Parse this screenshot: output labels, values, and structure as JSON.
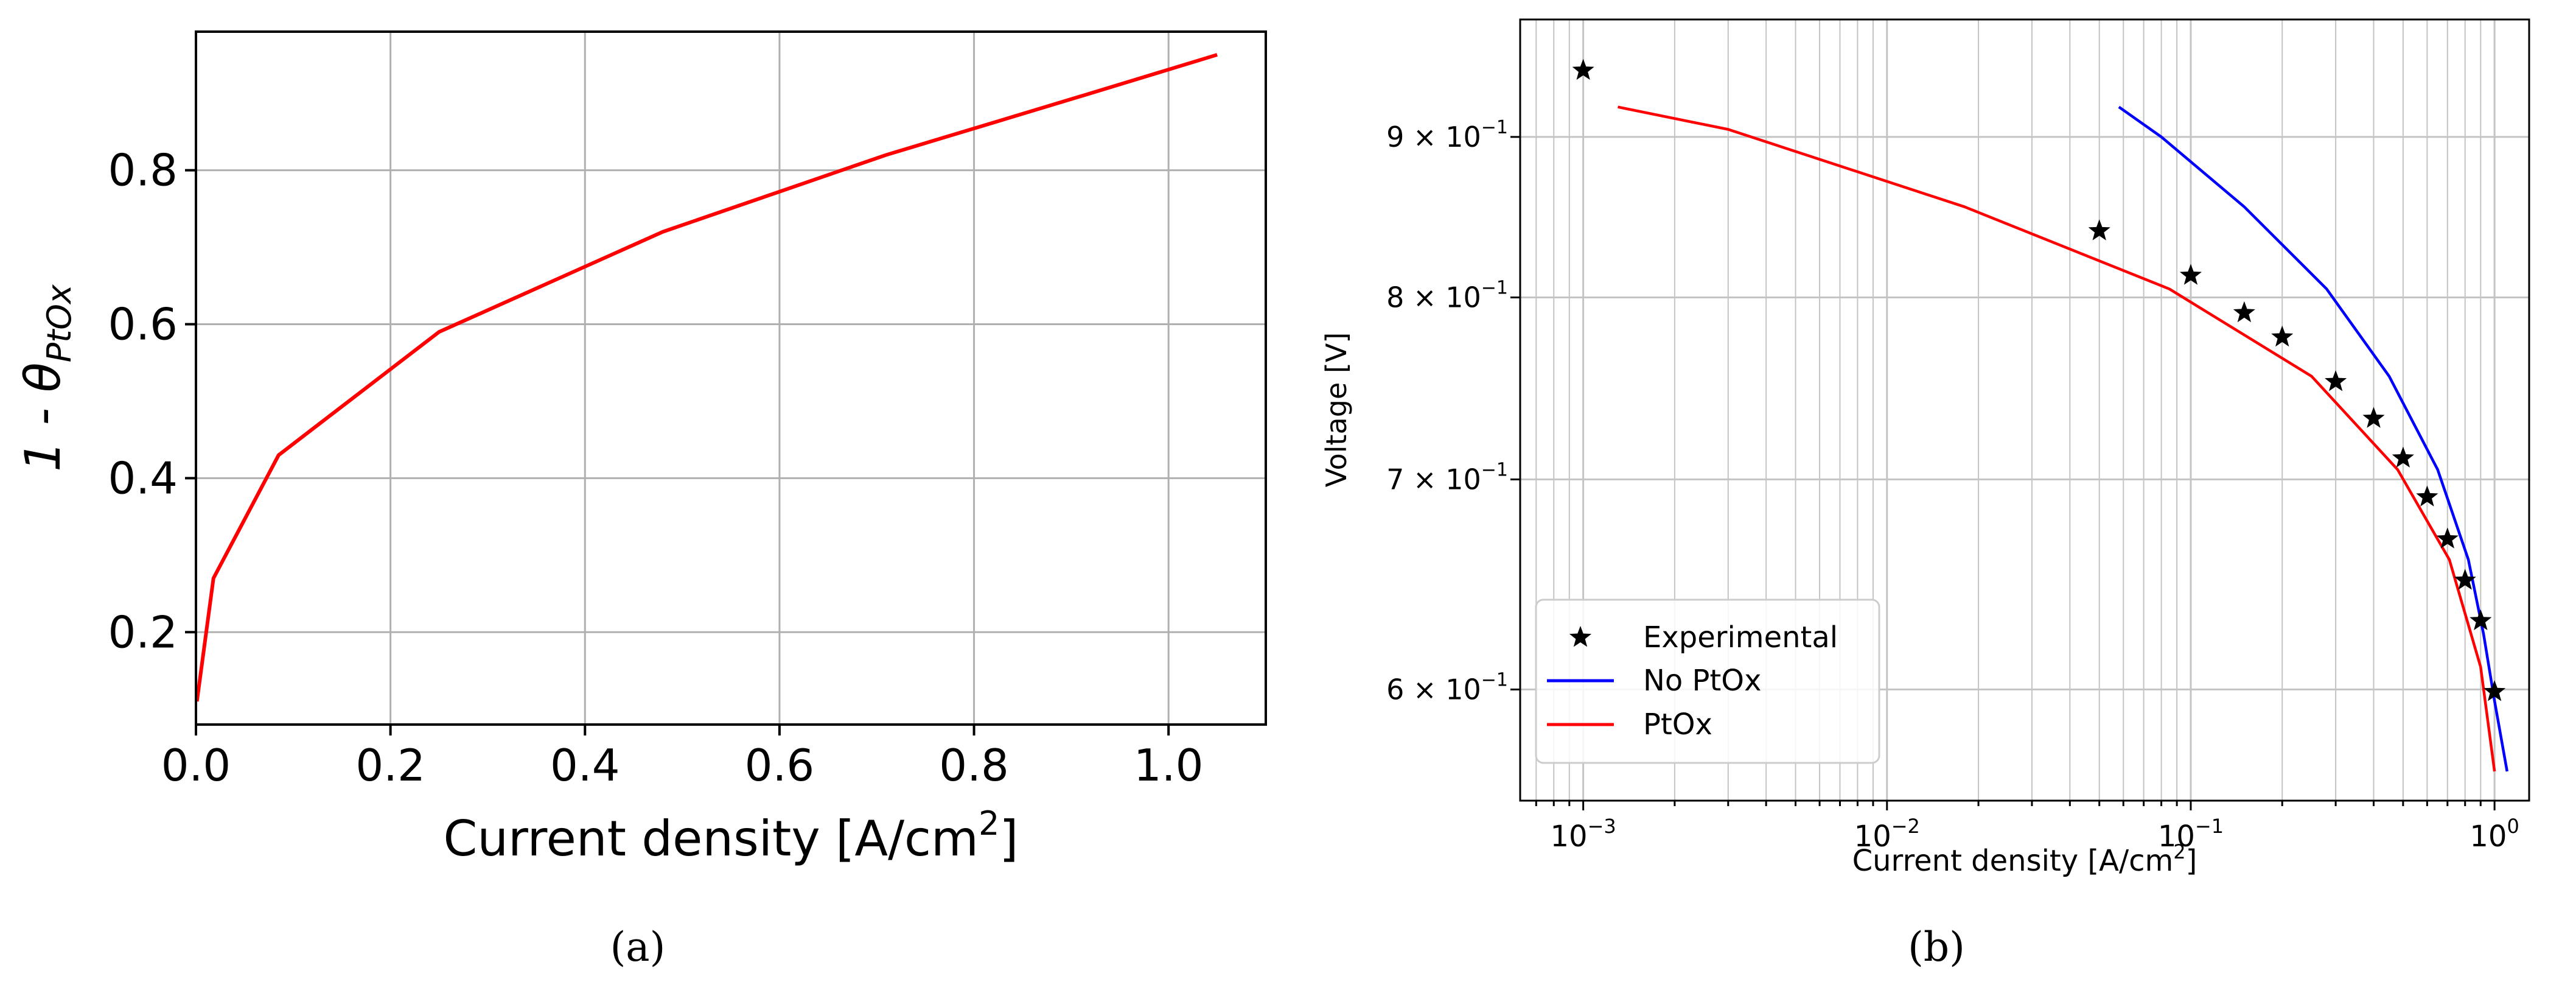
{
  "chart_data": [
    {
      "type": "line",
      "panel_label": "(a)",
      "title": "",
      "xlabel": "Current density  [A/cm",
      "xlabel_sup": "2",
      "xlabel_end": "]",
      "ylabel": "1 - θ",
      "ylabel_sub": "PtOx",
      "xlim": [
        0.0,
        1.1
      ],
      "ylim": [
        0.08,
        0.98
      ],
      "xticks": [
        0.0,
        0.2,
        0.4,
        0.6,
        0.8,
        1.0
      ],
      "xtick_labels": [
        "0.0",
        "0.2",
        "0.4",
        "0.6",
        "0.8",
        "1.0"
      ],
      "yticks": [
        0.2,
        0.4,
        0.6,
        0.8
      ],
      "ytick_labels": [
        "0.2",
        "0.4",
        "0.6",
        "0.8"
      ],
      "grid": true,
      "series": [
        {
          "name": "1 - θPtOx",
          "color": "#ff0000",
          "x": [
            0.001,
            0.018,
            0.085,
            0.25,
            0.48,
            0.71,
            0.92,
            1.05
          ],
          "y": [
            0.11,
            0.27,
            0.43,
            0.59,
            0.72,
            0.82,
            0.9,
            0.95
          ]
        }
      ]
    },
    {
      "type": "line",
      "panel_label": "(b)",
      "title": "",
      "xlabel": "Current density  [A/cm",
      "xlabel_sup": "2",
      "xlabel_end": "]",
      "ylabel": "Voltage [V]",
      "xscale": "log",
      "yscale": "log",
      "xlim": [
        0.00062,
        1.3
      ],
      "ylim": [
        0.553,
        0.981
      ],
      "xticks": [
        0.001,
        0.01,
        0.1,
        1
      ],
      "xtick_labels": [
        {
          "base": "10",
          "exp": "−3"
        },
        {
          "base": "10",
          "exp": "−2"
        },
        {
          "base": "10",
          "exp": "−1"
        },
        {
          "base": "10",
          "exp": "0"
        }
      ],
      "yticks": [
        0.6,
        0.7,
        0.8,
        0.9
      ],
      "ytick_labels": [
        {
          "mant": "6 × 10",
          "exp": "−1"
        },
        {
          "mant": "7 × 10",
          "exp": "−1"
        },
        {
          "mant": "8 × 10",
          "exp": "−1"
        },
        {
          "mant": "9 × 10",
          "exp": "−1"
        }
      ],
      "grid": true,
      "legend_position": "lower-left",
      "series": [
        {
          "name": "Experimental",
          "style": "star-markers",
          "color": "#000000",
          "x": [
            0.001,
            0.05,
            0.1,
            0.15,
            0.2,
            0.3,
            0.4,
            0.5,
            0.6,
            0.7,
            0.8,
            0.9,
            1.0
          ],
          "y": [
            0.945,
            0.84,
            0.813,
            0.791,
            0.777,
            0.752,
            0.732,
            0.711,
            0.691,
            0.67,
            0.65,
            0.631,
            0.599
          ]
        },
        {
          "name": "No PtOx",
          "style": "line",
          "color": "#0000ff",
          "x": [
            0.058,
            0.08,
            0.15,
            0.28,
            0.45,
            0.65,
            0.82,
            0.92,
            1.0,
            1.1
          ],
          "y": [
            0.92,
            0.9,
            0.855,
            0.805,
            0.755,
            0.705,
            0.66,
            0.625,
            0.595,
            0.565
          ]
        },
        {
          "name": "PtOx",
          "style": "line",
          "color": "#ff0000",
          "x": [
            0.0013,
            0.003,
            0.018,
            0.085,
            0.25,
            0.48,
            0.71,
            0.9,
            1.0
          ],
          "y": [
            0.92,
            0.905,
            0.855,
            0.805,
            0.755,
            0.705,
            0.66,
            0.61,
            0.565
          ]
        }
      ]
    }
  ]
}
